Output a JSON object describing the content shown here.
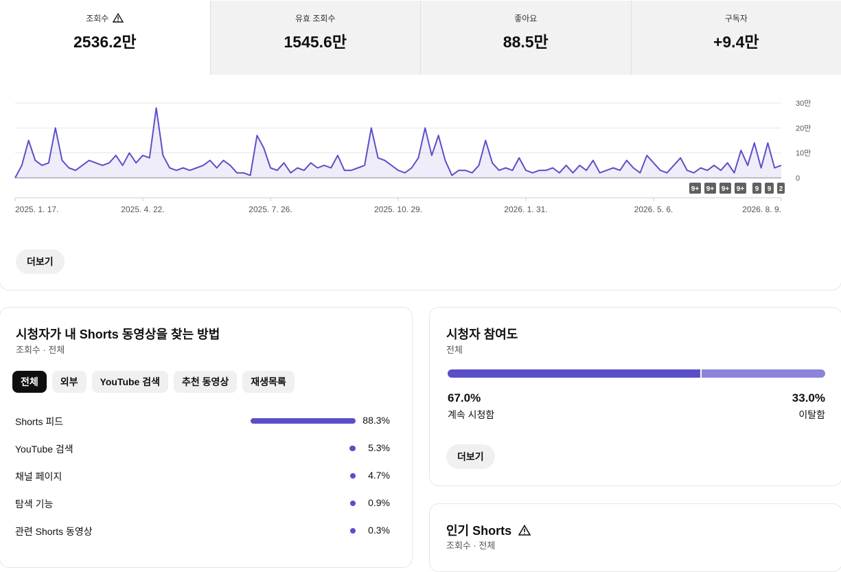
{
  "metrics": [
    {
      "label": "조회수",
      "value": "2536.2만"
    },
    {
      "label": "유효 조회수",
      "value": "1545.6만"
    },
    {
      "label": "좋아요",
      "value": "88.5만"
    },
    {
      "label": "구독자",
      "value": "+9.4만"
    }
  ],
  "chart_data": {
    "type": "line",
    "categories": [
      "2025. 1. 17.",
      null,
      null,
      null,
      null,
      null,
      null,
      null,
      null,
      null,
      null,
      null,
      null,
      null,
      null,
      null,
      null,
      null,
      null,
      "2025. 4. 22.",
      null,
      null,
      null,
      null,
      null,
      null,
      null,
      null,
      null,
      null,
      null,
      null,
      null,
      null,
      null,
      null,
      null,
      null,
      "2025. 7. 26.",
      null,
      null,
      null,
      null,
      null,
      null,
      null,
      null,
      null,
      null,
      null,
      null,
      null,
      null,
      null,
      null,
      null,
      null,
      "2025. 10. 29.",
      null,
      null,
      null,
      null,
      null,
      null,
      null,
      null,
      null,
      null,
      null,
      null,
      null,
      null,
      null,
      null,
      null,
      null,
      "2026. 1. 31.",
      null,
      null,
      null,
      null,
      null,
      null,
      null,
      null,
      null,
      null,
      null,
      null,
      null,
      null,
      null,
      null,
      null,
      null,
      "2026. 5. 6.",
      null,
      null,
      null,
      null,
      null,
      null,
      null,
      null,
      null,
      null,
      null,
      null,
      null,
      null,
      null,
      null,
      null,
      null,
      "2026. 8. 9."
    ],
    "series": [
      {
        "color": "#5b4fc7",
        "values": [
          0,
          5,
          15,
          7,
          5,
          6,
          20,
          7,
          4,
          3,
          5,
          7,
          6,
          5,
          6,
          9,
          5,
          10,
          6,
          9,
          8,
          28,
          9,
          4,
          3,
          4,
          3,
          4,
          5,
          7,
          4,
          7,
          5,
          2,
          2,
          1,
          17,
          12,
          4,
          3,
          6,
          2,
          4,
          3,
          6,
          4,
          5,
          4,
          9,
          3,
          3,
          4,
          5,
          20,
          8,
          7,
          5,
          3,
          2,
          4,
          8,
          20,
          9,
          17,
          7,
          1,
          3,
          3,
          2,
          5,
          15,
          6,
          3,
          4,
          3,
          8,
          3,
          2,
          3,
          3,
          4,
          2,
          5,
          2,
          5,
          3,
          7,
          2,
          3,
          4,
          3,
          7,
          4,
          2,
          9,
          6,
          3,
          2,
          5,
          8,
          3,
          2,
          4,
          3,
          5,
          3,
          6,
          2,
          11,
          5,
          14,
          4,
          14,
          4,
          5
        ]
      }
    ],
    "ylim": [
      0,
      30
    ],
    "yticks": [
      0,
      {
        "value": 10,
        "label": "10만"
      },
      {
        "value": 20,
        "label": "20만"
      },
      {
        "value": 30,
        "label": "30만"
      }
    ],
    "grid": true,
    "markers": [
      "9+",
      "9+",
      "9+",
      "9+",
      "9",
      "9",
      "2"
    ]
  },
  "more_button": "더보기",
  "traffic": {
    "title": "시청자가 내 Shorts 동영상을 찾는 방법",
    "subtitle": "조회수 · 전체",
    "chips": [
      "전체",
      "외부",
      "YouTube 검색",
      "추천 동영상",
      "재생목록"
    ],
    "rows": [
      {
        "name": "Shorts 피드",
        "value": 88.3,
        "value_label": "88.3%"
      },
      {
        "name": "YouTube 검색",
        "value": 5.3,
        "value_label": "5.3%"
      },
      {
        "name": "채널 페이지",
        "value": 4.7,
        "value_label": "4.7%"
      },
      {
        "name": "탐색 기능",
        "value": 0.9,
        "value_label": "0.9%"
      },
      {
        "name": "관련 Shorts 동영상",
        "value": 0.3,
        "value_label": "0.3%"
      }
    ]
  },
  "engagement": {
    "title": "시청자 참여도",
    "subtitle": "전체",
    "stayed": {
      "label": "계속 시청함",
      "value": 67.0,
      "value_label": "67.0%"
    },
    "left": {
      "label": "이탈함",
      "value": 33.0,
      "value_label": "33.0%"
    },
    "button": "더보기"
  },
  "popular": {
    "title": "인기 Shorts",
    "subtitle": "조회수 · 전체"
  }
}
